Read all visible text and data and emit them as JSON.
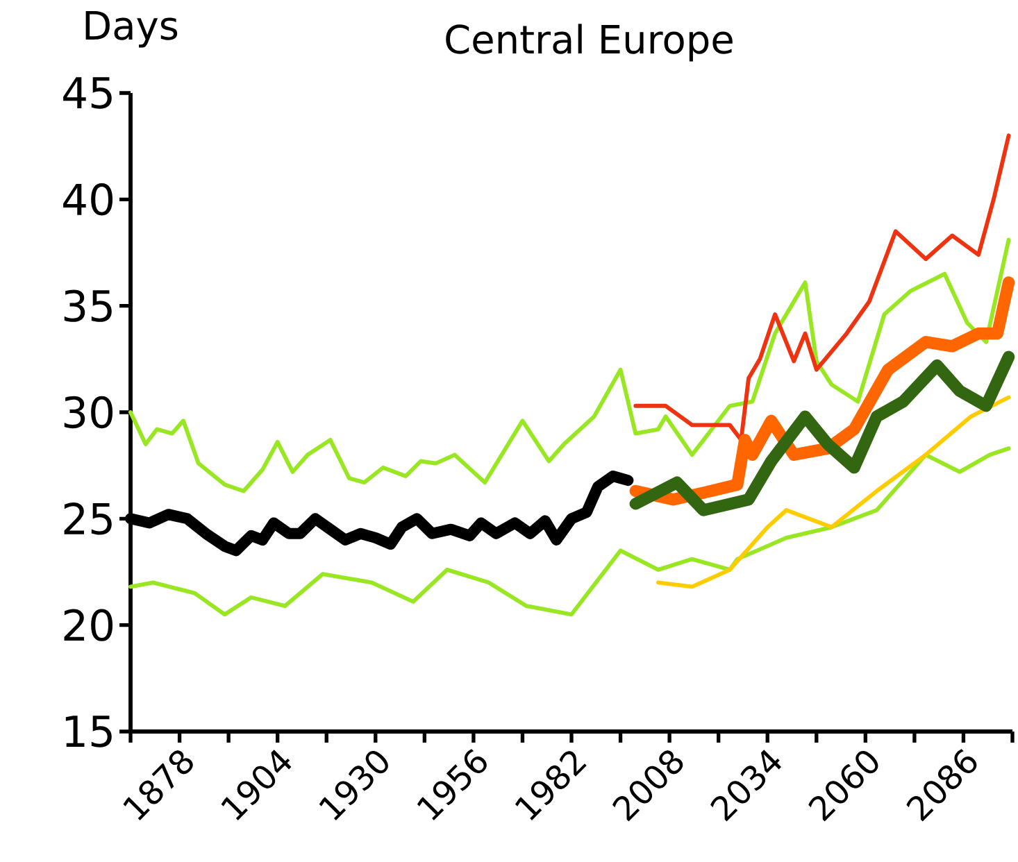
{
  "chart_data": {
    "type": "line",
    "title": "Central Europe",
    "ylabel": "Days",
    "xlim": [
      1865,
      2099
    ],
    "ylim": [
      15,
      45
    ],
    "xticks": [
      {
        "value": 1865,
        "label": null
      },
      1878,
      {
        "value": 1891,
        "label": null
      },
      1904,
      {
        "value": 1917,
        "label": null
      },
      1930,
      {
        "value": 1943,
        "label": null
      },
      1956,
      {
        "value": 1969,
        "label": null
      },
      1982,
      {
        "value": 1995,
        "label": null
      },
      2008,
      {
        "value": 2021,
        "label": null
      },
      2034,
      {
        "value": 2047,
        "label": null
      },
      2060,
      {
        "value": 2073,
        "label": null
      },
      2086,
      {
        "value": 2099,
        "label": null
      }
    ],
    "yticks": [
      15,
      20,
      25,
      30,
      35,
      40,
      45
    ],
    "series": [
      {
        "color": "#99e622",
        "x": [
          1865,
          1869,
          1872,
          1876,
          1879,
          1883,
          1890,
          1895,
          1900,
          1904,
          1908,
          1912,
          1918,
          1923,
          1927,
          1932,
          1938,
          1942,
          1946,
          1951,
          1959,
          1969,
          1976,
          1980,
          1988,
          1995,
          1999,
          2005,
          2007,
          2014,
          2024,
          2030,
          2036,
          2044,
          2047,
          2051,
          2058,
          2065,
          2072,
          2081,
          2087,
          2092,
          2098
        ],
        "values": [
          30.0,
          28.5,
          29.2,
          29.0,
          29.6,
          27.6,
          26.6,
          26.3,
          27.3,
          28.6,
          27.2,
          28.0,
          28.7,
          26.9,
          26.7,
          27.4,
          27.0,
          27.7,
          27.6,
          28.0,
          26.7,
          29.6,
          27.7,
          28.5,
          29.8,
          32.0,
          29.0,
          29.2,
          29.8,
          28.0,
          30.3,
          30.5,
          33.7,
          36.1,
          32.4,
          31.3,
          30.5,
          34.6,
          35.7,
          36.5,
          34.2,
          33.3,
          38.1
        ]
      },
      {
        "color": "#99e622",
        "x": [
          1865,
          1871,
          1882,
          1890,
          1897,
          1906,
          1916,
          1929,
          1940,
          1949,
          1960,
          1970,
          1982,
          1995,
          2005,
          2014,
          2024,
          2026,
          2039,
          2051,
          2063,
          2076,
          2085,
          2093,
          2098
        ],
        "values": [
          21.8,
          22.0,
          21.5,
          20.5,
          21.3,
          20.9,
          22.4,
          22.0,
          21.1,
          22.6,
          22.0,
          20.9,
          20.5,
          23.5,
          22.6,
          23.1,
          22.6,
          23.1,
          24.1,
          24.6,
          25.4,
          28.0,
          27.2,
          28.0,
          28.3
        ]
      },
      {
        "color": "#ffcc00",
        "x": [
          2005,
          2014,
          2024,
          2034,
          2039,
          2051,
          2063,
          2076,
          2088,
          2098
        ],
        "values": [
          22.0,
          21.8,
          22.6,
          24.6,
          25.4,
          24.6,
          26.3,
          28.0,
          29.8,
          30.7
        ]
      },
      {
        "color": "#ee3311",
        "x": [
          1999,
          2007,
          2014,
          2024,
          2027,
          2029,
          2032,
          2036,
          2041,
          2044,
          2047,
          2055,
          2061,
          2068,
          2076,
          2083,
          2090,
          2094,
          2098
        ],
        "values": [
          30.3,
          30.3,
          29.4,
          29.4,
          28.7,
          31.6,
          32.5,
          34.6,
          32.4,
          33.7,
          32.0,
          33.7,
          35.2,
          38.5,
          37.2,
          38.3,
          37.4,
          40.0,
          43.0
        ]
      },
      {
        "color": "#ff6600",
        "x": [
          1999,
          2009,
          2019,
          2026,
          2028,
          2030,
          2035,
          2041,
          2050,
          2057,
          2066,
          2076,
          2083,
          2090,
          2095,
          2098
        ],
        "values": [
          26.3,
          25.9,
          26.3,
          26.6,
          28.7,
          28.0,
          29.6,
          28.0,
          28.3,
          29.2,
          32.0,
          33.3,
          33.1,
          33.7,
          33.7,
          36.1
        ]
      },
      {
        "color": "#336611",
        "x": [
          1999,
          2010,
          2017,
          2029,
          2035,
          2044,
          2050,
          2057,
          2063,
          2070,
          2079,
          2085,
          2092,
          2098
        ],
        "values": [
          25.7,
          26.7,
          25.4,
          25.9,
          27.7,
          29.8,
          28.5,
          27.4,
          29.8,
          30.5,
          32.2,
          31.0,
          30.3,
          32.6
        ]
      },
      {
        "color": "#000000",
        "x": [
          1865,
          1870,
          1875,
          1880,
          1885,
          1890,
          1893,
          1897,
          1900,
          1903,
          1907,
          1910,
          1914,
          1918,
          1922,
          1926,
          1930,
          1934,
          1937,
          1941,
          1945,
          1950,
          1955,
          1958,
          1962,
          1967,
          1971,
          1975,
          1978,
          1982,
          1986,
          1989,
          1993,
          1997
        ],
        "values": [
          25.0,
          24.8,
          25.2,
          25.0,
          24.3,
          23.7,
          23.5,
          24.2,
          24.0,
          24.8,
          24.3,
          24.3,
          25.0,
          24.5,
          24.0,
          24.3,
          24.1,
          23.8,
          24.6,
          25.0,
          24.3,
          24.5,
          24.2,
          24.8,
          24.3,
          24.8,
          24.3,
          24.9,
          24.0,
          25.0,
          25.3,
          26.5,
          27.0,
          26.8
        ]
      }
    ]
  }
}
